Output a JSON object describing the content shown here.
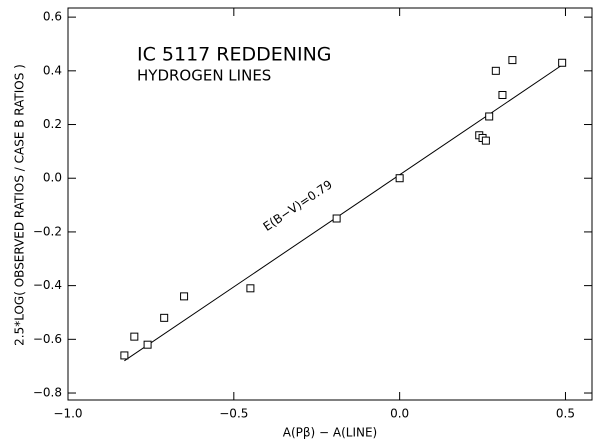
{
  "chart_data": {
    "type": "scatter",
    "annotations": [
      "IC 5117 REDDENING",
      "HYDROGEN LINES",
      "E(B−V)=0.79"
    ],
    "x_label": "A(Pβ) − A(LINE)",
    "y_label": "2.5*LOG( OBSERVED RATIOS / CASE B RATIOS )",
    "xlim": [
      -1.0,
      0.58
    ],
    "ylim": [
      -0.826,
      0.634
    ],
    "xticks": [
      {
        "value": -1.0,
        "label": "−1.0"
      },
      {
        "value": -0.5,
        "label": "−0.5"
      },
      {
        "value": 0.0,
        "label": "0.0"
      },
      {
        "value": 0.5,
        "label": "0.5"
      }
    ],
    "yticks": [
      {
        "value": -0.8,
        "label": "−0.8"
      },
      {
        "value": -0.6,
        "label": "−0.6"
      },
      {
        "value": -0.4,
        "label": "−0.4"
      },
      {
        "value": -0.2,
        "label": "−0.2"
      },
      {
        "value": 0.0,
        "label": "0.0"
      },
      {
        "value": 0.2,
        "label": "0.2"
      },
      {
        "value": 0.4,
        "label": "0.4"
      },
      {
        "value": 0.6,
        "label": "0.6"
      }
    ],
    "color": "#000000",
    "points": {
      "x": [
        -0.83,
        -0.8,
        -0.76,
        -0.71,
        -0.65,
        -0.45,
        -0.19,
        0.0,
        0.24,
        0.25,
        0.26,
        0.27,
        0.29,
        0.31,
        0.34,
        0.49
      ],
      "y": [
        -0.66,
        -0.59,
        -0.62,
        -0.52,
        -0.44,
        -0.41,
        -0.15,
        0.0,
        0.16,
        0.15,
        0.14,
        0.23,
        0.4,
        0.31,
        0.44,
        0.43
      ]
    },
    "fit_line": {
      "x": [
        -0.83,
        0.5
      ],
      "y": [
        -0.68,
        0.43
      ]
    }
  }
}
